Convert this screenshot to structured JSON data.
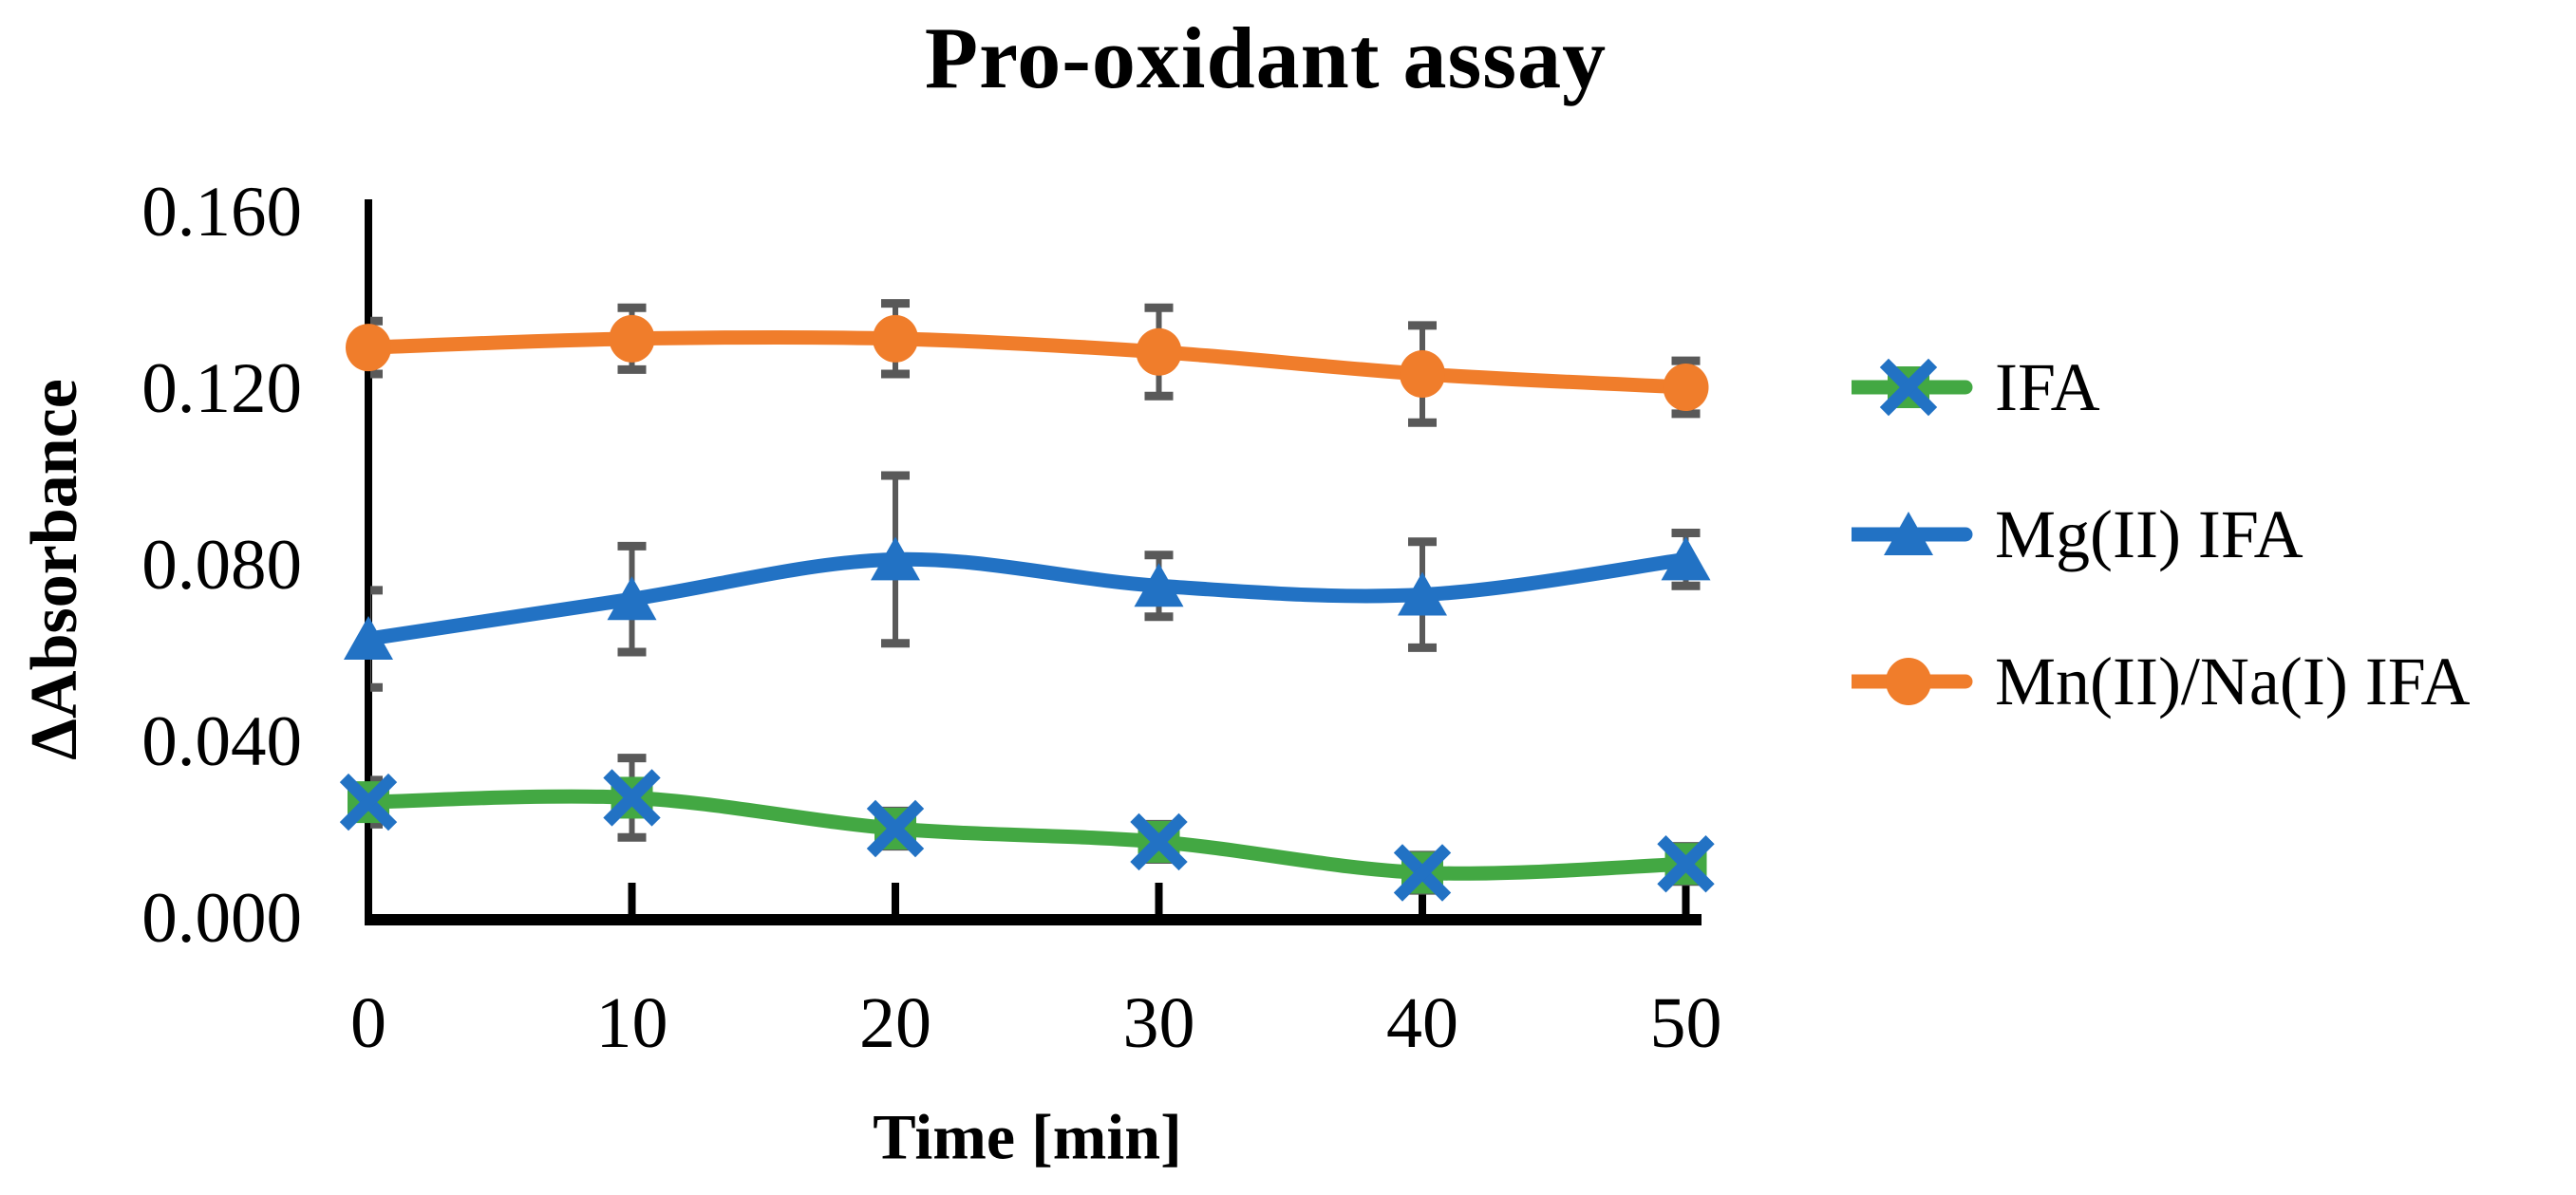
{
  "title": "Pro-oxidant assay",
  "axes": {
    "y_label": "ΔAbsorbance",
    "x_label": "Time [min]",
    "y_tick_labels": [
      "0.160",
      "0.120",
      "0.080",
      "0.040",
      "0.000"
    ],
    "x_tick_labels": [
      "0",
      "10",
      "20",
      "30",
      "40",
      "50"
    ]
  },
  "legend": {
    "items": [
      {
        "label": "IFA",
        "marker": "square-x",
        "color": "#43A843"
      },
      {
        "label": "Mg(II) IFA",
        "marker": "triangle-up",
        "color": "#2272C4"
      },
      {
        "label": "Mn(II)/Na(I) IFA",
        "marker": "circle",
        "color": "#F07D2B"
      }
    ]
  },
  "colors": {
    "ifa_green": "#43A843",
    "marker_x_blue": "#2272C4",
    "mg_blue": "#2272C4",
    "mn_orange": "#F07D2B",
    "error_bar_gray": "#595959",
    "axis_black": "#000000"
  },
  "chart_data": {
    "type": "line",
    "title": "Pro-oxidant assay",
    "xlabel": "Time [min]",
    "ylabel": "ΔAbsorbance",
    "x": [
      0,
      10,
      20,
      30,
      40,
      50
    ],
    "xlim": [
      0,
      50
    ],
    "ylim": [
      0.0,
      0.16
    ],
    "ytick_step": 0.04,
    "grid": false,
    "smoothed_lines": true,
    "error_bars": true,
    "legend_position": "right",
    "series": [
      {
        "name": "IFA",
        "marker": "square-x",
        "color": "#43A843",
        "values": [
          0.026,
          0.027,
          0.02,
          0.017,
          0.01,
          0.012
        ],
        "errors": [
          0.005,
          0.009,
          0.004,
          0.004,
          0.004,
          0.004
        ]
      },
      {
        "name": "Mg(II) IFA",
        "marker": "triangle-up",
        "color": "#2272C4",
        "values": [
          0.063,
          0.072,
          0.081,
          0.075,
          0.073,
          0.081
        ],
        "errors": [
          0.011,
          0.012,
          0.019,
          0.007,
          0.012,
          0.006
        ]
      },
      {
        "name": "Mn(II)/Na(I) IFA",
        "marker": "circle",
        "color": "#F07D2B",
        "values": [
          0.129,
          0.131,
          0.131,
          0.128,
          0.123,
          0.12
        ],
        "errors": [
          0.006,
          0.007,
          0.008,
          0.01,
          0.011,
          0.006
        ]
      }
    ]
  }
}
